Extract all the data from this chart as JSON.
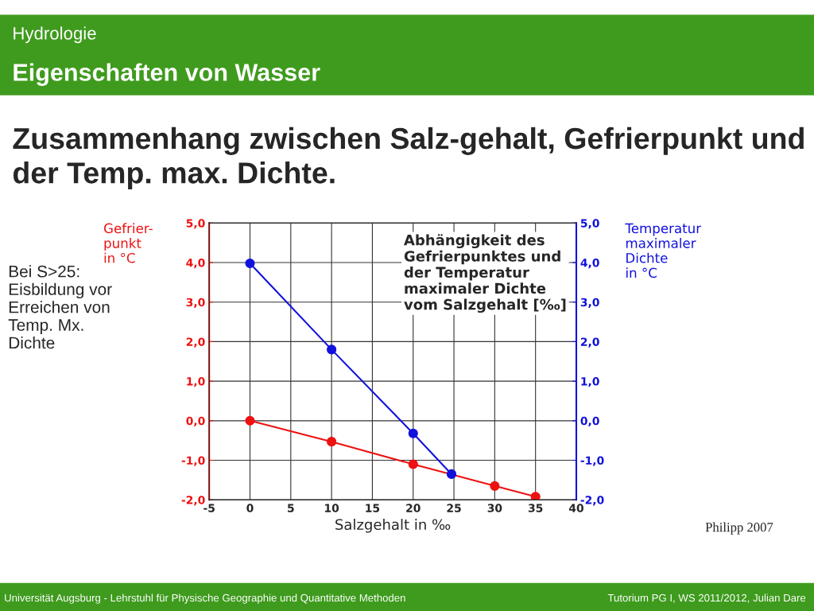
{
  "chart_data": {
    "type": "line",
    "title": "Zusammenhang zwischen Salz-gehalt, Gefrierpunkt und der Temp. max. Dichte.",
    "xlabel": "Salzgehalt in ‰",
    "ylabel": "Gefrier-\npunkt\nin °C",
    "y2label": "Temperatur\nmaximaler\nDichte\nin °C",
    "series": [
      {
        "color": "#ee1111",
        "x": [
          0,
          10,
          20,
          30,
          35
        ],
        "values": [
          0,
          -0.53,
          -1.1,
          -1.65,
          -1.92
        ]
      },
      {
        "color": "#1111dd",
        "axis": "y2",
        "x": [
          0,
          10,
          20,
          24.7
        ],
        "values": [
          3.98,
          1.8,
          -0.32,
          -1.35
        ]
      }
    ],
    "xlim": [
      -5,
      40
    ],
    "xticks": [
      -5,
      0,
      5,
      10,
      15,
      20,
      25,
      30,
      35,
      40
    ],
    "ylim": [
      -2,
      5
    ],
    "yticks": [
      {
        "value": -2,
        "label": "-2,0"
      },
      {
        "value": -1,
        "label": "-1,0"
      },
      {
        "value": 0,
        "label": "0,0"
      },
      {
        "value": 1,
        "label": "1,0"
      },
      {
        "value": 2,
        "label": "2,0"
      },
      {
        "value": 3,
        "label": "3,0"
      },
      {
        "value": 4,
        "label": "4,0"
      },
      {
        "value": 5,
        "label": "5,0"
      }
    ],
    "y2lim": [
      -2,
      5
    ],
    "y2ticks": [
      {
        "value": -2,
        "label": "-2,0"
      },
      {
        "value": -1,
        "label": "-1,0"
      },
      {
        "value": 0,
        "label": "0,0"
      },
      {
        "value": 1,
        "label": "1,0"
      },
      {
        "value": 2,
        "label": "2,0"
      },
      {
        "value": 3,
        "label": "3,0"
      },
      {
        "value": 4,
        "label": "4,0"
      },
      {
        "value": 5,
        "label": "5,0"
      }
    ],
    "grid": true,
    "marker": "circle",
    "line_style": "solid",
    "annotations": [
      "Hydrologie",
      "Eigenschaften von Wasser",
      "Abhängigkeit des\nGefrierpunktes und\nder Temperatur\nmaximaler Dichte\nvom Salzgehalt [‰]",
      "Bei S>25:\nEisbildung vor\nErreichen von\nTemp. Mx.\nDichte",
      "Philipp 2007",
      "Universität Augsburg - Lehrstuhl für Physische Geographie und Quantitative Methoden",
      "Tutorium PG I, WS 2011/2012, Julian Dare"
    ]
  }
}
